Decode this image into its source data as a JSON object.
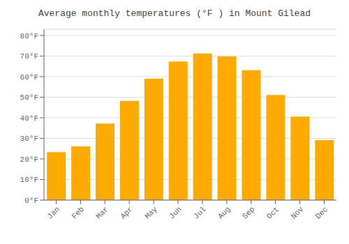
{
  "chart_data": {
    "type": "bar",
    "title": "Average monthly temperatures (°F ) in Mount Gilead",
    "categories": [
      "Jan",
      "Feb",
      "Mar",
      "Apr",
      "May",
      "Jun",
      "Jul",
      "Aug",
      "Sep",
      "Oct",
      "Nov",
      "Dec"
    ],
    "values": [
      23.3,
      26.1,
      37.2,
      48.2,
      59.0,
      67.3,
      71.2,
      69.8,
      63.1,
      51.1,
      40.6,
      29.1
    ],
    "color": "#FFAA00",
    "ylim": [
      0,
      83
    ],
    "yticks": [
      {
        "value": 0,
        "label": "0°F"
      },
      {
        "value": 10,
        "label": "10°F"
      },
      {
        "value": 20,
        "label": "20°F"
      },
      {
        "value": 30,
        "label": "30°F"
      },
      {
        "value": 40,
        "label": "40°F"
      },
      {
        "value": 50,
        "label": "50°F"
      },
      {
        "value": 60,
        "label": "60°F"
      },
      {
        "value": 70,
        "label": "70°F"
      },
      {
        "value": 80,
        "label": "80°F"
      }
    ],
    "grid": true
  }
}
